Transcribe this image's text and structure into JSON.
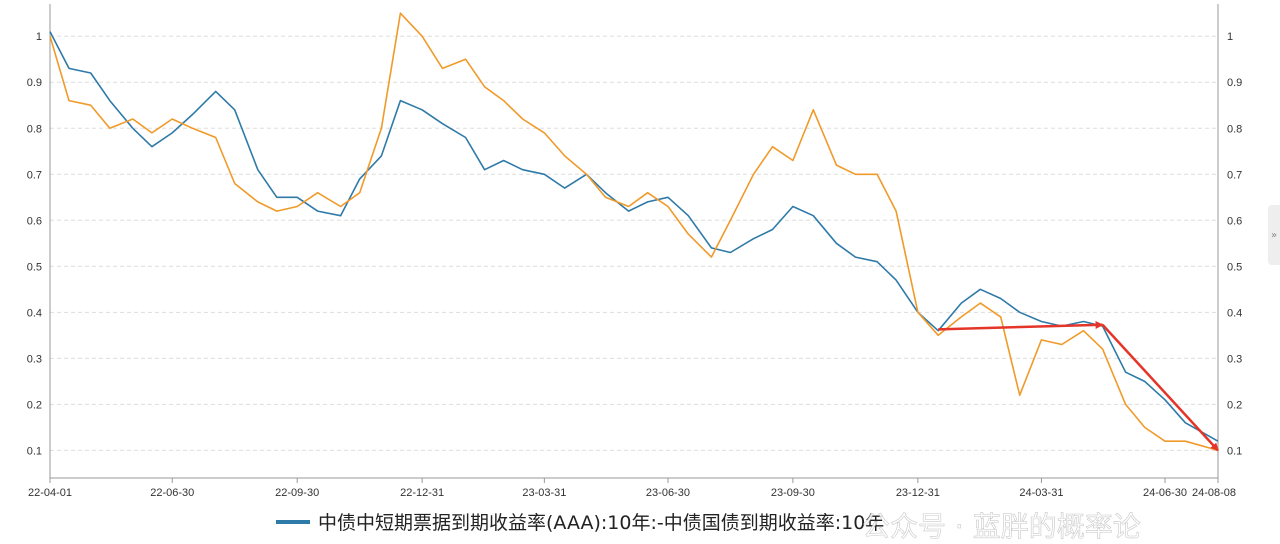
{
  "chart_data": {
    "type": "line",
    "x_ticks": [
      "22-04-01",
      "22-06-30",
      "22-09-30",
      "22-12-31",
      "23-03-31",
      "23-06-30",
      "23-09-30",
      "23-12-31",
      "24-03-31",
      "24-06-30",
      "24-08-08"
    ],
    "y_ticks": [
      "1",
      "0.9",
      "0.8",
      "0.7",
      "0.6",
      "0.5",
      "0.4",
      "0.3",
      "0.2",
      "0.1"
    ],
    "ylim": [
      0.04,
      1.07
    ],
    "grid": true,
    "legend_position": "bottom",
    "series": [
      {
        "name": "中债中短期票据到期收益率(AAA):10年:-中债国债到期收益率:10年",
        "color": "#2e7aa8",
        "points": [
          [
            "22-04-01",
            1.01
          ],
          [
            "22-04-15",
            0.93
          ],
          [
            "22-05-01",
            0.92
          ],
          [
            "22-05-15",
            0.86
          ],
          [
            "22-06-01",
            0.8
          ],
          [
            "22-06-15",
            0.76
          ],
          [
            "22-06-30",
            0.79
          ],
          [
            "22-07-15",
            0.83
          ],
          [
            "22-08-01",
            0.88
          ],
          [
            "22-08-15",
            0.84
          ],
          [
            "22-09-01",
            0.71
          ],
          [
            "22-09-15",
            0.65
          ],
          [
            "22-09-30",
            0.65
          ],
          [
            "22-10-15",
            0.62
          ],
          [
            "22-11-01",
            0.61
          ],
          [
            "22-11-15",
            0.69
          ],
          [
            "22-12-01",
            0.74
          ],
          [
            "22-12-15",
            0.86
          ],
          [
            "22-12-31",
            0.84
          ],
          [
            "23-01-15",
            0.81
          ],
          [
            "23-02-01",
            0.78
          ],
          [
            "23-02-15",
            0.71
          ],
          [
            "23-03-01",
            0.73
          ],
          [
            "23-03-15",
            0.71
          ],
          [
            "23-03-31",
            0.7
          ],
          [
            "23-04-15",
            0.67
          ],
          [
            "23-05-01",
            0.7
          ],
          [
            "23-05-15",
            0.66
          ],
          [
            "23-06-01",
            0.62
          ],
          [
            "23-06-15",
            0.64
          ],
          [
            "23-06-30",
            0.65
          ],
          [
            "23-07-15",
            0.61
          ],
          [
            "23-08-01",
            0.54
          ],
          [
            "23-08-15",
            0.53
          ],
          [
            "23-09-01",
            0.56
          ],
          [
            "23-09-15",
            0.58
          ],
          [
            "23-09-30",
            0.63
          ],
          [
            "23-10-15",
            0.61
          ],
          [
            "23-11-01",
            0.55
          ],
          [
            "23-11-15",
            0.52
          ],
          [
            "23-12-01",
            0.51
          ],
          [
            "23-12-15",
            0.47
          ],
          [
            "23-12-31",
            0.4
          ],
          [
            "24-01-15",
            0.36
          ],
          [
            "24-02-01",
            0.42
          ],
          [
            "24-02-15",
            0.45
          ],
          [
            "24-03-01",
            0.43
          ],
          [
            "24-03-15",
            0.4
          ],
          [
            "24-03-31",
            0.38
          ],
          [
            "24-04-15",
            0.37
          ],
          [
            "24-05-01",
            0.38
          ],
          [
            "24-05-15",
            0.37
          ],
          [
            "24-06-01",
            0.27
          ],
          [
            "24-06-15",
            0.25
          ],
          [
            "24-06-30",
            0.21
          ],
          [
            "24-07-15",
            0.16
          ],
          [
            "24-08-08",
            0.12
          ]
        ]
      },
      {
        "name": "",
        "color": "#f09a2a",
        "points": [
          [
            "22-04-01",
            1.0
          ],
          [
            "22-04-15",
            0.86
          ],
          [
            "22-05-01",
            0.85
          ],
          [
            "22-05-15",
            0.8
          ],
          [
            "22-06-01",
            0.82
          ],
          [
            "22-06-15",
            0.79
          ],
          [
            "22-06-30",
            0.82
          ],
          [
            "22-07-15",
            0.8
          ],
          [
            "22-08-01",
            0.78
          ],
          [
            "22-08-15",
            0.68
          ],
          [
            "22-09-01",
            0.64
          ],
          [
            "22-09-15",
            0.62
          ],
          [
            "22-09-30",
            0.63
          ],
          [
            "22-10-15",
            0.66
          ],
          [
            "22-11-01",
            0.63
          ],
          [
            "22-11-15",
            0.66
          ],
          [
            "22-12-01",
            0.8
          ],
          [
            "22-12-15",
            1.05
          ],
          [
            "22-12-31",
            1.0
          ],
          [
            "23-01-15",
            0.93
          ],
          [
            "23-02-01",
            0.95
          ],
          [
            "23-02-15",
            0.89
          ],
          [
            "23-03-01",
            0.86
          ],
          [
            "23-03-15",
            0.82
          ],
          [
            "23-03-31",
            0.79
          ],
          [
            "23-04-15",
            0.74
          ],
          [
            "23-05-01",
            0.7
          ],
          [
            "23-05-15",
            0.65
          ],
          [
            "23-06-01",
            0.63
          ],
          [
            "23-06-15",
            0.66
          ],
          [
            "23-06-30",
            0.63
          ],
          [
            "23-07-15",
            0.57
          ],
          [
            "23-08-01",
            0.52
          ],
          [
            "23-08-15",
            0.6
          ],
          [
            "23-09-01",
            0.7
          ],
          [
            "23-09-15",
            0.76
          ],
          [
            "23-09-30",
            0.73
          ],
          [
            "23-10-15",
            0.84
          ],
          [
            "23-11-01",
            0.72
          ],
          [
            "23-11-15",
            0.7
          ],
          [
            "23-12-01",
            0.7
          ],
          [
            "23-12-15",
            0.62
          ],
          [
            "23-12-31",
            0.4
          ],
          [
            "24-01-15",
            0.35
          ],
          [
            "24-02-01",
            0.39
          ],
          [
            "24-02-15",
            0.42
          ],
          [
            "24-03-01",
            0.39
          ],
          [
            "24-03-15",
            0.22
          ],
          [
            "24-03-31",
            0.34
          ],
          [
            "24-04-15",
            0.33
          ],
          [
            "24-05-01",
            0.36
          ],
          [
            "24-05-15",
            0.32
          ],
          [
            "24-06-01",
            0.2
          ],
          [
            "24-06-15",
            0.15
          ],
          [
            "24-06-30",
            0.12
          ],
          [
            "24-07-15",
            0.12
          ],
          [
            "24-08-08",
            0.1
          ]
        ]
      }
    ],
    "annotations": [
      {
        "type": "arrow",
        "color": "#e53528",
        "from": [
          "24-01-15",
          0.363
        ],
        "to": [
          "24-05-15",
          0.373
        ]
      },
      {
        "type": "arrow",
        "color": "#e53528",
        "from": [
          "24-05-15",
          0.373
        ],
        "to": [
          "24-08-08",
          0.1
        ]
      }
    ]
  },
  "watermark": "公众号 · 蓝胖的概率论",
  "side_tab_glyph": "»"
}
